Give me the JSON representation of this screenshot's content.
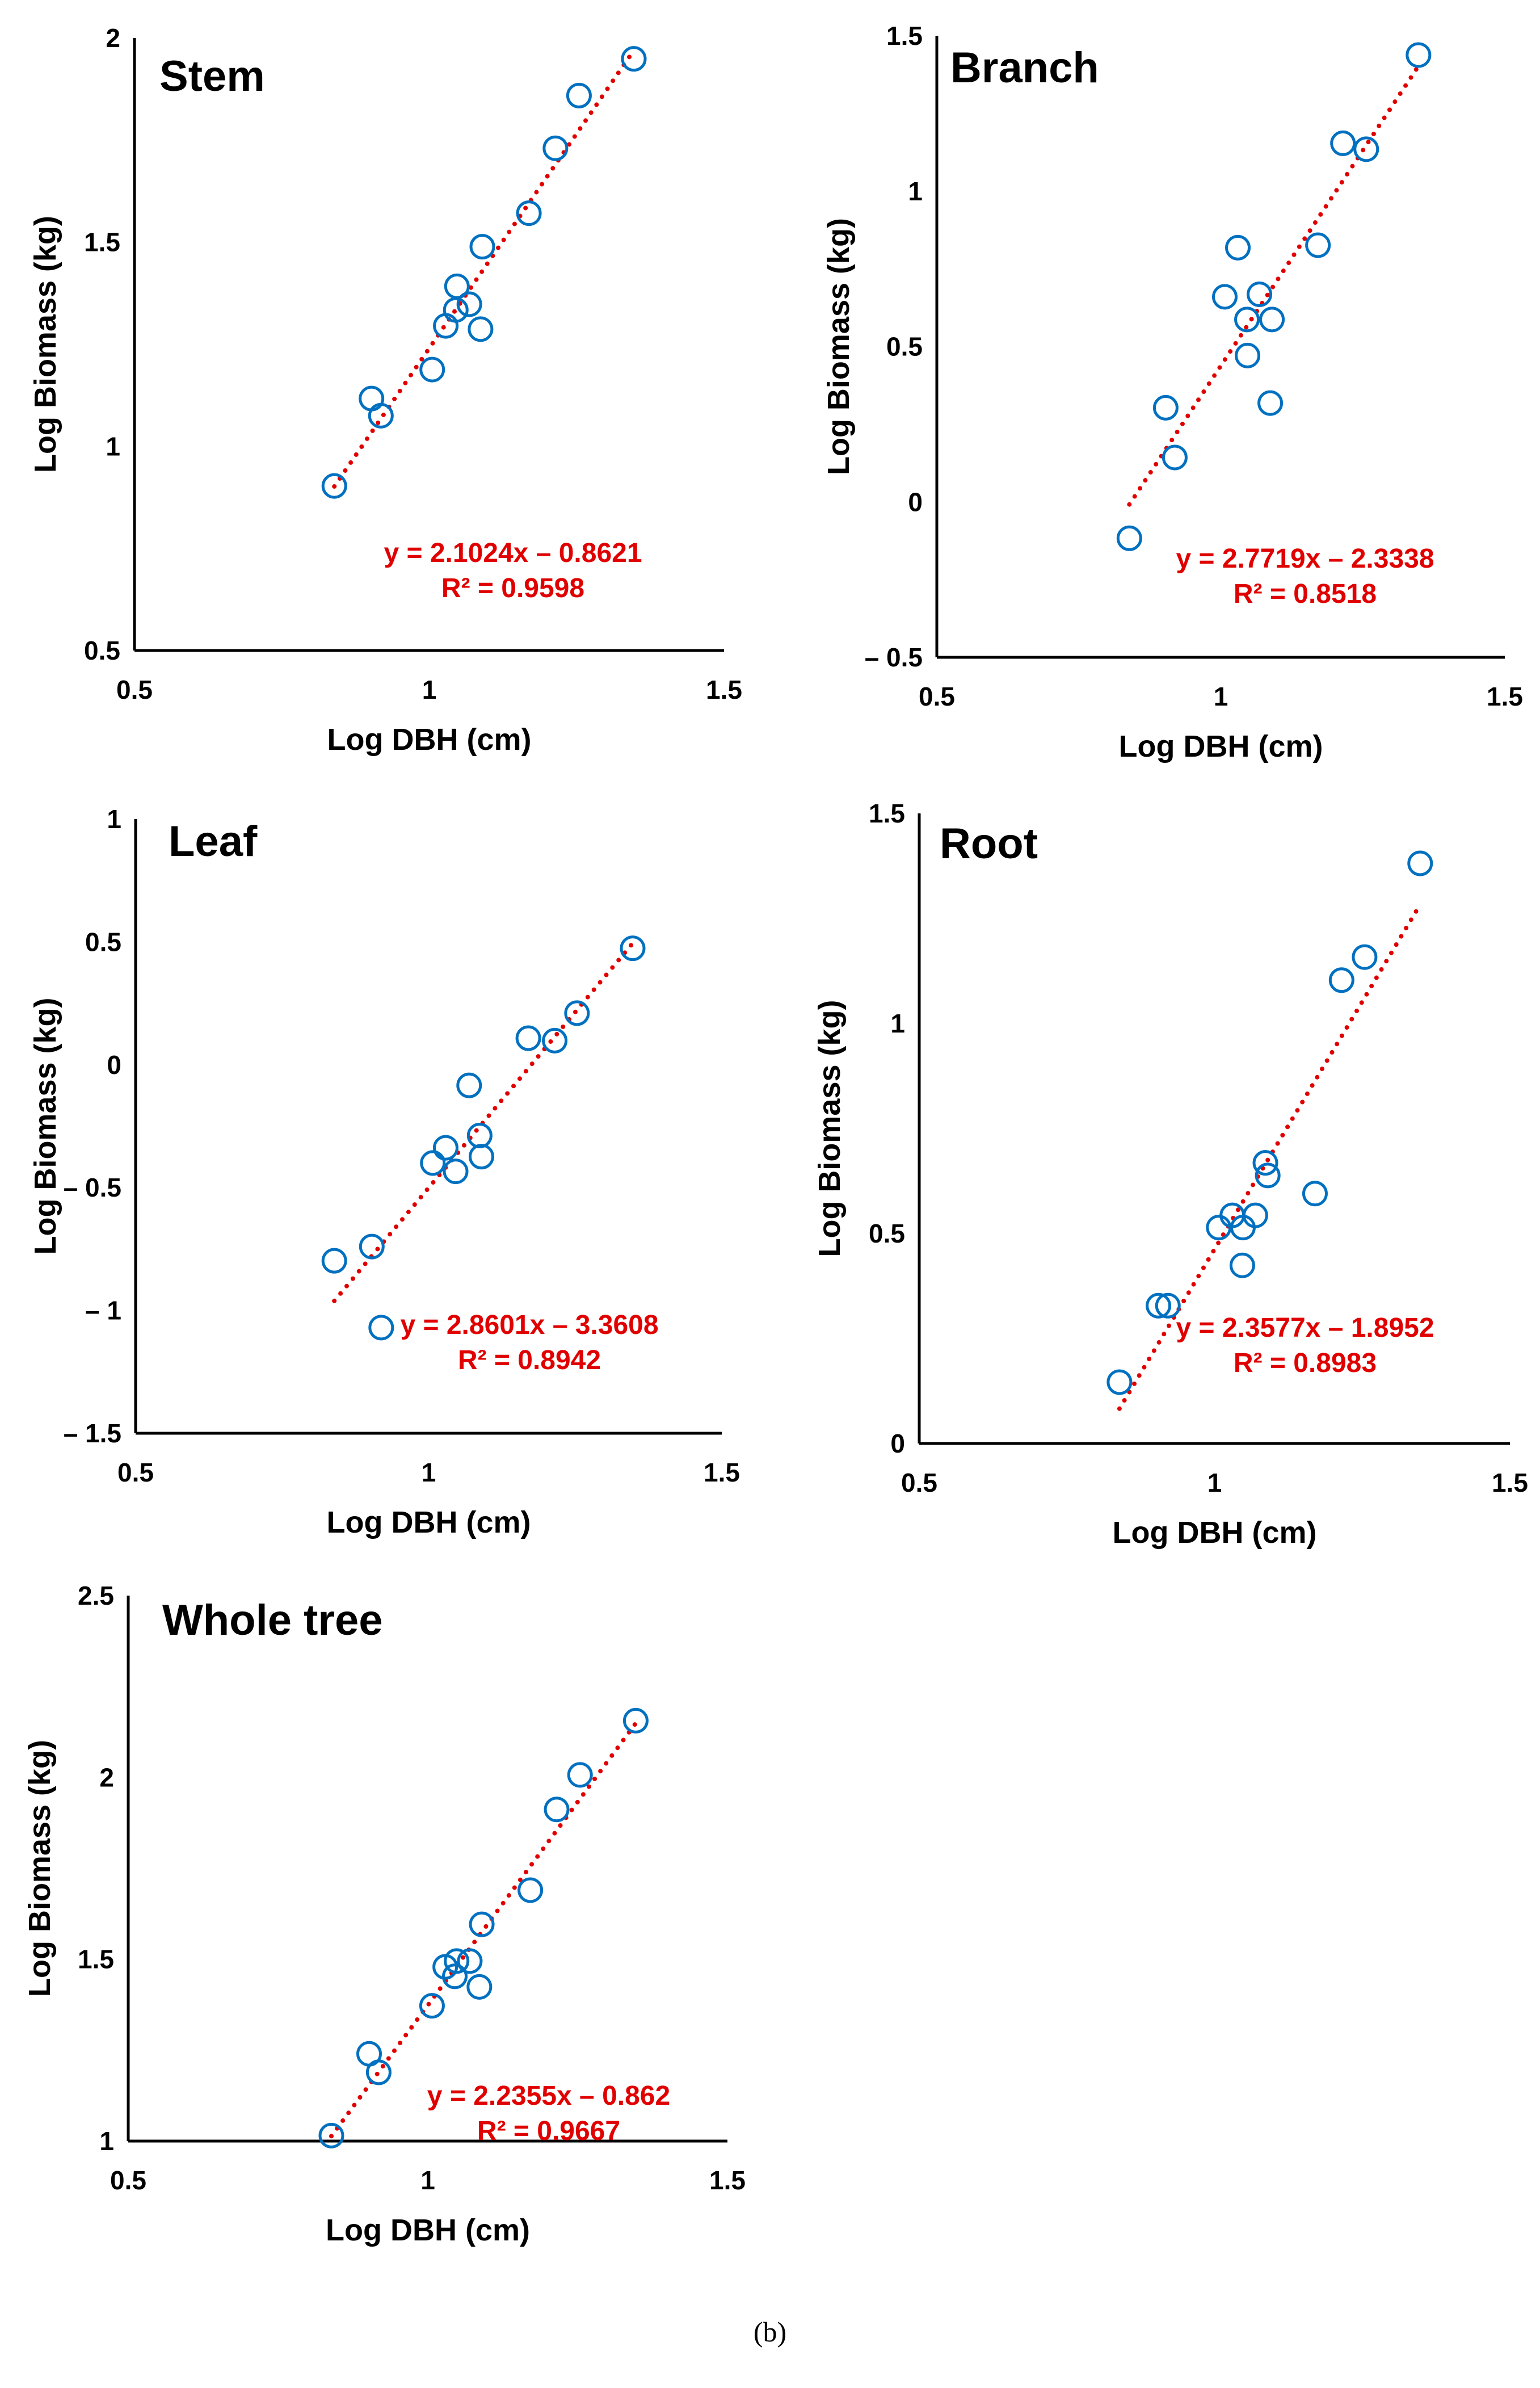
{
  "caption": "(b)",
  "colors": {
    "marker": "#0070c0",
    "trend": "#e00000",
    "axis": "#000000"
  },
  "chart_data": [
    {
      "type": "scatter",
      "title": "Stem",
      "xlabel": "Log DBH (cm)",
      "ylabel": "Log Biomass (kg)",
      "xlim": [
        0.5,
        1.5
      ],
      "ylim": [
        0.5,
        2
      ],
      "xticks": [
        "0.5",
        "1",
        "1.5"
      ],
      "xtick_values": [
        0.5,
        1,
        1.5
      ],
      "yticks": [
        "0.5",
        "1",
        "1.5",
        "2"
      ],
      "ytick_values": [
        0.5,
        1,
        1.5,
        2
      ],
      "x": [
        0.839,
        0.902,
        0.918,
        1.005,
        1.028,
        1.045,
        1.047,
        1.068,
        1.087,
        1.09,
        1.169,
        1.214,
        1.254,
        1.347
      ],
      "y": [
        0.903,
        1.117,
        1.075,
        1.188,
        1.295,
        1.334,
        1.392,
        1.348,
        1.287,
        1.489,
        1.571,
        1.73,
        1.859,
        1.949
      ],
      "trendline": {
        "slope": 2.1024,
        "intercept": -0.8621,
        "equation": "y = 2.1024x – 0.8621",
        "r2": "R² = 0.9598"
      },
      "grid": false
    },
    {
      "type": "scatter",
      "title": "Branch",
      "xlabel": "Log DBH (cm)",
      "ylabel": "Log Biomass (kg)",
      "xlim": [
        0.5,
        1.5
      ],
      "ylim": [
        -0.5,
        1.5
      ],
      "xticks": [
        "0.5",
        "1",
        "1.5"
      ],
      "xtick_values": [
        0.5,
        1,
        1.5
      ],
      "yticks": [
        "– 0.5",
        "0",
        "0.5",
        "1",
        "1.5"
      ],
      "ytick_values": [
        -0.5,
        0,
        0.5,
        1,
        1.5
      ],
      "x": [
        0.839,
        0.903,
        0.919,
        1.007,
        1.03,
        1.046,
        1.047,
        1.068,
        1.087,
        1.09,
        1.171,
        1.215,
        1.256,
        1.348
      ],
      "y": [
        -0.117,
        0.303,
        0.143,
        0.66,
        0.818,
        0.587,
        0.471,
        0.668,
        0.318,
        0.587,
        0.826,
        1.154,
        1.135,
        1.438
      ],
      "trendline": {
        "slope": 2.7719,
        "intercept": -2.3338,
        "equation": "y = 2.7719x – 2.3338",
        "r2": "R² = 0.8518"
      },
      "grid": false
    },
    {
      "type": "scatter",
      "title": "Leaf",
      "xlabel": "Log DBH (cm)",
      "ylabel": "Log Biomass (kg)",
      "xlim": [
        0.5,
        1.5
      ],
      "ylim": [
        -1.5,
        1
      ],
      "xticks": [
        "0.5",
        "1",
        "1.5"
      ],
      "xtick_values": [
        0.5,
        1,
        1.5
      ],
      "yticks": [
        "– 1.5",
        "– 1",
        "– 0.5",
        "0",
        "0.5",
        "1"
      ],
      "ytick_values": [
        -1.5,
        -1,
        -0.5,
        0,
        0.5,
        1
      ],
      "x": [
        0.839,
        0.903,
        0.919,
        1.007,
        1.029,
        1.046,
        1.069,
        1.087,
        1.09,
        1.17,
        1.215,
        1.253,
        1.348
      ],
      "y": [
        -0.798,
        -0.74,
        -1.07,
        -0.4,
        -0.338,
        -0.434,
        -0.084,
        -0.288,
        -0.374,
        0.108,
        0.098,
        0.21,
        0.474
      ],
      "trendline": {
        "slope": 2.8601,
        "intercept": -3.3608,
        "equation": "y = 2.8601x – 3.3608",
        "r2": "R² = 0.8942"
      },
      "grid": false
    },
    {
      "type": "scatter",
      "title": "Root",
      "xlabel": "Log DBH (cm)",
      "ylabel": "Log Biomass (kg)",
      "xlim": [
        0.5,
        1.5
      ],
      "ylim": [
        0,
        1.5
      ],
      "xticks": [
        "0.5",
        "1",
        "1.5"
      ],
      "xtick_values": [
        0.5,
        1,
        1.5
      ],
      "yticks": [
        "0",
        "0.5",
        "1",
        "1.5"
      ],
      "ytick_values": [
        0,
        0.5,
        1,
        1.5
      ],
      "x": [
        0.839,
        0.905,
        0.921,
        1.007,
        1.03,
        1.048,
        1.047,
        1.069,
        1.086,
        1.09,
        1.17,
        1.215,
        1.254,
        1.348
      ],
      "y": [
        0.146,
        0.328,
        0.328,
        0.514,
        0.543,
        0.514,
        0.424,
        0.543,
        0.668,
        0.638,
        0.595,
        1.103,
        1.158,
        1.381
      ],
      "trendline": {
        "slope": 2.3577,
        "intercept": -1.8952,
        "equation": "y = 2.3577x – 1.8952",
        "r2": "R² = 0.8983"
      },
      "grid": false
    },
    {
      "type": "scatter",
      "title": "Whole tree",
      "xlabel": "Log DBH (cm)",
      "ylabel": "Log Biomass (kg)",
      "xlim": [
        0.5,
        1.5
      ],
      "ylim": [
        1,
        2.5
      ],
      "xticks": [
        "0.5",
        "1",
        "1.5"
      ],
      "xtick_values": [
        0.5,
        1,
        1.5
      ],
      "yticks": [
        "1",
        "1.5",
        "2",
        "2.5"
      ],
      "ytick_values": [
        1,
        1.5,
        2,
        2.5
      ],
      "x": [
        0.839,
        0.902,
        0.918,
        1.007,
        1.029,
        1.048,
        1.045,
        1.07,
        1.086,
        1.09,
        1.171,
        1.215,
        1.254,
        1.347
      ],
      "y": [
        1.015,
        1.24,
        1.189,
        1.372,
        1.479,
        1.495,
        1.453,
        1.495,
        1.424,
        1.596,
        1.69,
        1.912,
        2.007,
        2.156
      ],
      "trendline": {
        "slope": 2.2355,
        "intercept": -0.862,
        "equation": "y = 2.2355x – 0.862",
        "r2": "R² = 0.9667"
      },
      "grid": false
    }
  ]
}
